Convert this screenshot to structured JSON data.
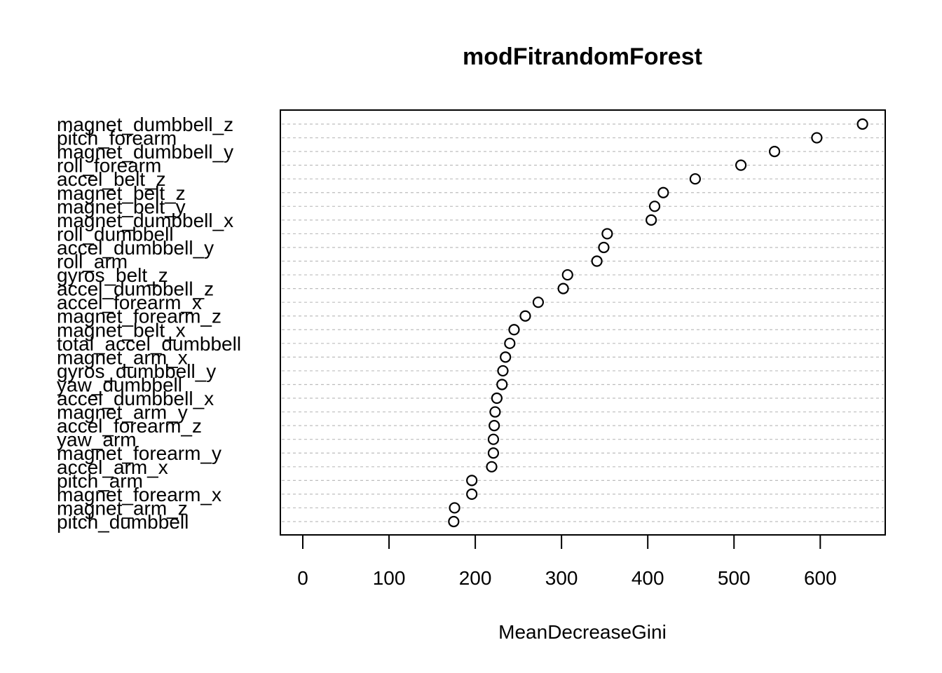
{
  "chart_data": {
    "type": "scatter",
    "title": "modFitrandomForest",
    "xlabel": "MeanDecreaseGini",
    "ylabel": "",
    "xlim": [
      -25,
      675
    ],
    "xticks": [
      "0",
      "100",
      "200",
      "300",
      "400",
      "500",
      "600"
    ],
    "grid": "horizontal dotted guide per variable",
    "variables": [
      {
        "name": "magnet_dumbbell_z",
        "value": 649
      },
      {
        "name": "pitch_forearm",
        "value": 596
      },
      {
        "name": "magnet_dumbbell_y",
        "value": 547
      },
      {
        "name": "roll_forearm",
        "value": 508
      },
      {
        "name": "accel_belt_z",
        "value": 455
      },
      {
        "name": "magnet_belt_z",
        "value": 418
      },
      {
        "name": "magnet_belt_y",
        "value": 408
      },
      {
        "name": "magnet_dumbbell_x",
        "value": 404
      },
      {
        "name": "roll_dumbbell",
        "value": 353
      },
      {
        "name": "accel_dumbbell_y",
        "value": 349
      },
      {
        "name": "roll_arm",
        "value": 341
      },
      {
        "name": "gyros_belt_z",
        "value": 307
      },
      {
        "name": "accel_dumbbell_z",
        "value": 302
      },
      {
        "name": "accel_forearm_x",
        "value": 273
      },
      {
        "name": "magnet_forearm_z",
        "value": 258
      },
      {
        "name": "magnet_belt_x",
        "value": 245
      },
      {
        "name": "total_accel_dumbbell",
        "value": 240
      },
      {
        "name": "magnet_arm_x",
        "value": 235
      },
      {
        "name": "gyros_dumbbell_y",
        "value": 232
      },
      {
        "name": "yaw_dumbbell",
        "value": 231
      },
      {
        "name": "accel_dumbbell_x",
        "value": 225
      },
      {
        "name": "magnet_arm_y",
        "value": 223
      },
      {
        "name": "accel_forearm_z",
        "value": 222
      },
      {
        "name": "yaw_arm",
        "value": 221
      },
      {
        "name": "magnet_forearm_y",
        "value": 221
      },
      {
        "name": "accel_arm_x",
        "value": 219
      },
      {
        "name": "pitch_arm",
        "value": 196
      },
      {
        "name": "magnet_forearm_x",
        "value": 196
      },
      {
        "name": "magnet_arm_z",
        "value": 176
      },
      {
        "name": "pitch_dumbbell",
        "value": 175
      }
    ]
  }
}
